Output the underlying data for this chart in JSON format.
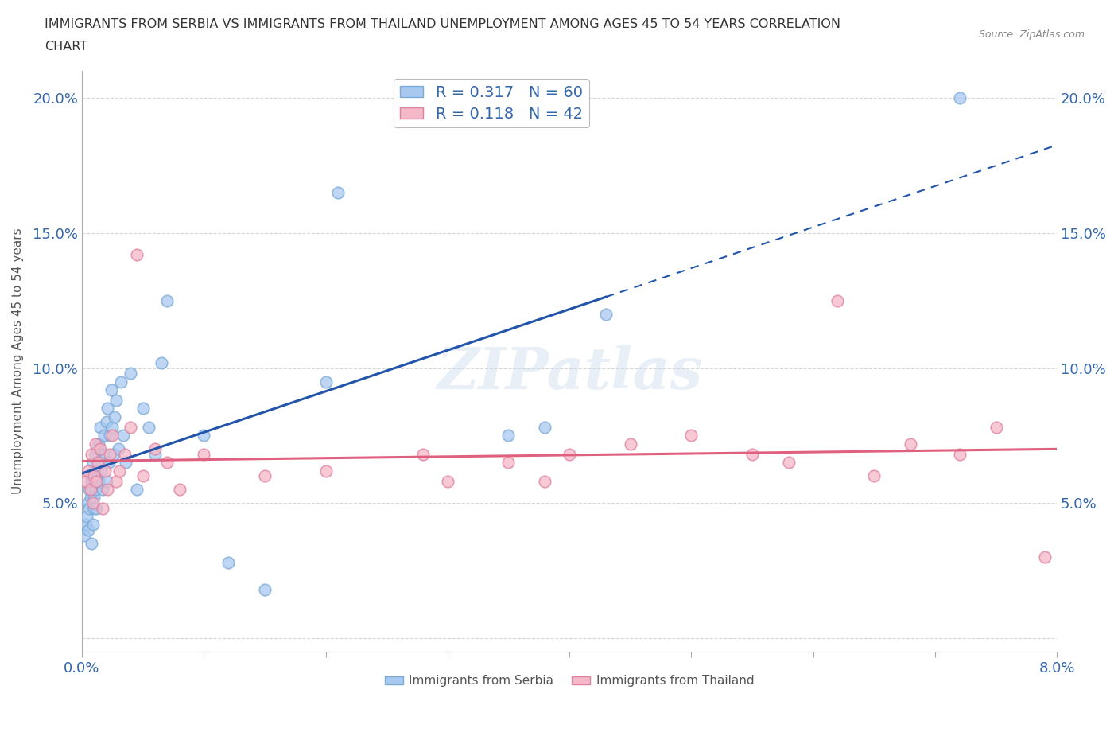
{
  "title_line1": "IMMIGRANTS FROM SERBIA VS IMMIGRANTS FROM THAILAND UNEMPLOYMENT AMONG AGES 45 TO 54 YEARS CORRELATION",
  "title_line2": "CHART",
  "source": "Source: ZipAtlas.com",
  "ylabel": "Unemployment Among Ages 45 to 54 years",
  "xlim": [
    0.0,
    0.08
  ],
  "ylim": [
    -0.005,
    0.21
  ],
  "xticks": [
    0.0,
    0.01,
    0.02,
    0.03,
    0.04,
    0.05,
    0.06,
    0.07,
    0.08
  ],
  "xtick_labels": [
    "0.0%",
    "",
    "",
    "",
    "",
    "",
    "",
    "",
    "8.0%"
  ],
  "yticks": [
    0.0,
    0.05,
    0.1,
    0.15,
    0.2
  ],
  "ytick_labels": [
    "",
    "5.0%",
    "10.0%",
    "15.0%",
    "20.0%"
  ],
  "serbia_color": "#A8C8F0",
  "serbia_edge": "#7AAAD8",
  "thailand_color": "#F5B8C8",
  "thailand_edge": "#E080A0",
  "serbia_R": 0.317,
  "serbia_N": 60,
  "thailand_R": 0.118,
  "thailand_N": 42,
  "serbia_line_color": "#2255AA",
  "thailand_line_color": "#E06080",
  "watermark_text": "ZIPatlas",
  "background_color": "#ffffff",
  "serbia_scatter_x": [
    0.0002,
    0.0003,
    0.0004,
    0.0005,
    0.0005,
    0.0006,
    0.0006,
    0.0007,
    0.0007,
    0.0008,
    0.0008,
    0.0009,
    0.0009,
    0.001,
    0.001,
    0.001,
    0.0011,
    0.0011,
    0.0012,
    0.0012,
    0.0013,
    0.0013,
    0.0014,
    0.0014,
    0.0015,
    0.0015,
    0.0016,
    0.0017,
    0.0018,
    0.0019,
    0.002,
    0.002,
    0.0021,
    0.0022,
    0.0023,
    0.0024,
    0.0025,
    0.0026,
    0.0027,
    0.0028,
    0.003,
    0.0032,
    0.0034,
    0.0036,
    0.004,
    0.0045,
    0.005,
    0.0055,
    0.006,
    0.0065,
    0.007,
    0.01,
    0.012,
    0.015,
    0.02,
    0.021,
    0.035,
    0.038,
    0.043,
    0.072
  ],
  "serbia_scatter_y": [
    0.038,
    0.042,
    0.045,
    0.05,
    0.04,
    0.055,
    0.048,
    0.06,
    0.052,
    0.058,
    0.035,
    0.065,
    0.042,
    0.058,
    0.048,
    0.052,
    0.068,
    0.055,
    0.062,
    0.048,
    0.06,
    0.07,
    0.058,
    0.072,
    0.065,
    0.078,
    0.062,
    0.055,
    0.075,
    0.068,
    0.08,
    0.058,
    0.085,
    0.065,
    0.075,
    0.092,
    0.078,
    0.068,
    0.082,
    0.088,
    0.07,
    0.095,
    0.075,
    0.065,
    0.098,
    0.055,
    0.085,
    0.078,
    0.068,
    0.102,
    0.125,
    0.075,
    0.028,
    0.018,
    0.095,
    0.165,
    0.075,
    0.078,
    0.12,
    0.2
  ],
  "thailand_scatter_x": [
    0.0003,
    0.0005,
    0.0007,
    0.0008,
    0.0009,
    0.001,
    0.0011,
    0.0012,
    0.0013,
    0.0015,
    0.0017,
    0.0019,
    0.0021,
    0.0023,
    0.0025,
    0.0028,
    0.0031,
    0.0035,
    0.004,
    0.0045,
    0.005,
    0.006,
    0.007,
    0.008,
    0.01,
    0.015,
    0.02,
    0.028,
    0.03,
    0.035,
    0.038,
    0.04,
    0.045,
    0.05,
    0.055,
    0.058,
    0.062,
    0.065,
    0.068,
    0.072,
    0.075,
    0.079
  ],
  "thailand_scatter_y": [
    0.058,
    0.062,
    0.055,
    0.068,
    0.05,
    0.06,
    0.072,
    0.058,
    0.065,
    0.07,
    0.048,
    0.062,
    0.055,
    0.068,
    0.075,
    0.058,
    0.062,
    0.068,
    0.078,
    0.142,
    0.06,
    0.07,
    0.065,
    0.055,
    0.068,
    0.06,
    0.062,
    0.068,
    0.058,
    0.065,
    0.058,
    0.068,
    0.072,
    0.075,
    0.068,
    0.065,
    0.125,
    0.06,
    0.072,
    0.068,
    0.078,
    0.03
  ]
}
